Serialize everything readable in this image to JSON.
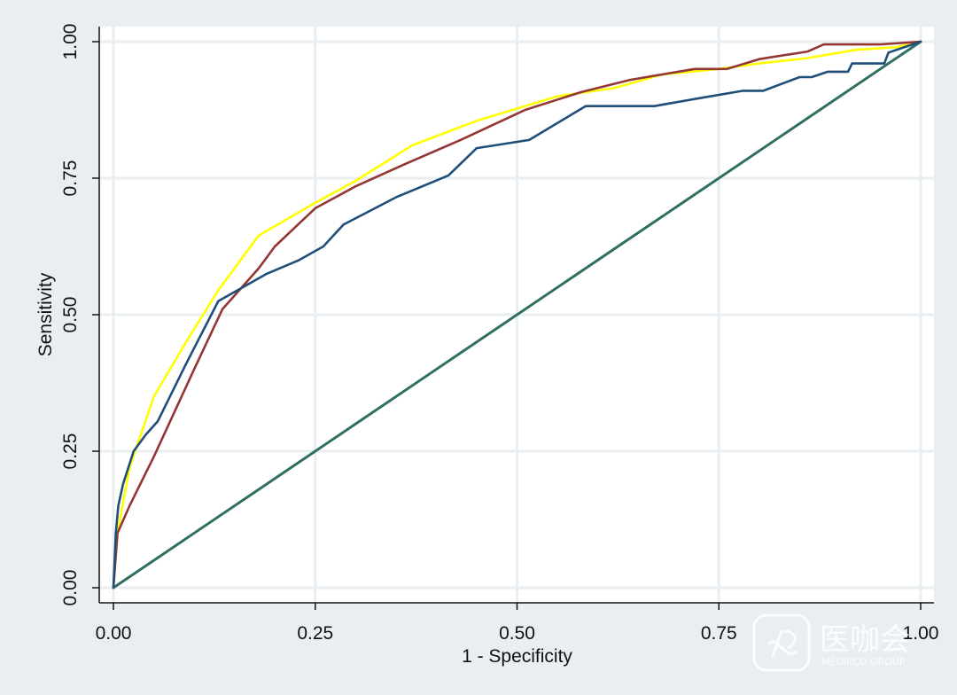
{
  "chart_data": {
    "type": "line",
    "title": "",
    "xlabel": "1 - Specificity",
    "ylabel": "Sensitivity",
    "xlim": [
      0,
      1
    ],
    "ylim": [
      0,
      1
    ],
    "xticks": [
      "0.00",
      "0.25",
      "0.50",
      "0.75",
      "1.00"
    ],
    "yticks": [
      "0.00",
      "0.25",
      "0.50",
      "0.75",
      "1.00"
    ],
    "grid": true,
    "legend": "none",
    "series": [
      {
        "color": "#1f4e79",
        "x": [
          0,
          0.003,
          0.006,
          0.012,
          0.025,
          0.04,
          0.055,
          0.09,
          0.13,
          0.19,
          0.23,
          0.26,
          0.285,
          0.35,
          0.415,
          0.45,
          0.515,
          0.585,
          0.67,
          0.72,
          0.78,
          0.805,
          0.85,
          0.865,
          0.885,
          0.91,
          0.915,
          0.935,
          0.945,
          0.955,
          0.96,
          0.99,
          1.0
        ],
        "y": [
          0,
          0.1,
          0.15,
          0.19,
          0.25,
          0.28,
          0.305,
          0.41,
          0.525,
          0.575,
          0.6,
          0.625,
          0.665,
          0.715,
          0.755,
          0.805,
          0.82,
          0.882,
          0.882,
          0.895,
          0.91,
          0.91,
          0.935,
          0.935,
          0.945,
          0.945,
          0.96,
          0.96,
          0.96,
          0.96,
          0.98,
          0.995,
          1.0
        ]
      },
      {
        "color": "#943634",
        "x": [
          0,
          0.005,
          0.02,
          0.05,
          0.1,
          0.135,
          0.18,
          0.2,
          0.25,
          0.3,
          0.36,
          0.43,
          0.51,
          0.58,
          0.64,
          0.72,
          0.76,
          0.8,
          0.86,
          0.88,
          0.95,
          1.0
        ],
        "y": [
          0,
          0.1,
          0.15,
          0.24,
          0.4,
          0.51,
          0.585,
          0.625,
          0.695,
          0.735,
          0.775,
          0.82,
          0.875,
          0.908,
          0.93,
          0.95,
          0.95,
          0.968,
          0.982,
          0.995,
          0.995,
          1.0
        ]
      },
      {
        "color": "#ffff00",
        "x": [
          0,
          0.005,
          0.02,
          0.05,
          0.09,
          0.13,
          0.18,
          0.25,
          0.3,
          0.37,
          0.45,
          0.55,
          0.62,
          0.68,
          0.75,
          0.8,
          0.86,
          0.92,
          0.97,
          1.0
        ],
        "y": [
          0,
          0.1,
          0.22,
          0.35,
          0.45,
          0.545,
          0.645,
          0.705,
          0.745,
          0.81,
          0.855,
          0.9,
          0.915,
          0.94,
          0.95,
          0.96,
          0.97,
          0.985,
          0.99,
          1.0
        ]
      },
      {
        "color": "#2e6f62",
        "x": [
          0,
          1
        ],
        "y": [
          0,
          1
        ]
      }
    ]
  },
  "watermark": {
    "logo_icon": "medieco-logo-icon",
    "text": "医咖会",
    "subtext": "MEDIECO GROUP"
  }
}
